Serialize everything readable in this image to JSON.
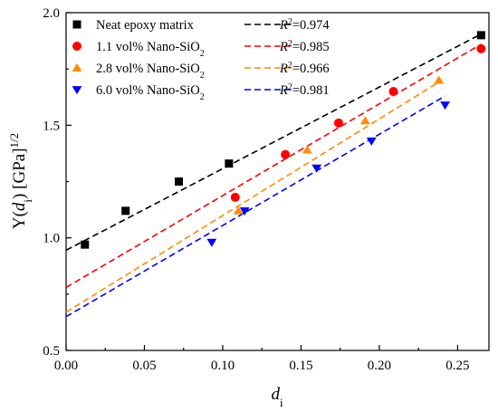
{
  "chart_data": {
    "type": "scatter",
    "xlabel": {
      "base": "d",
      "sub": "i"
    },
    "ylabel": {
      "pre": "Y(",
      "var": "d",
      "sub": "i",
      "post": ") [GPa]",
      "sup": "1/2"
    },
    "xlim": [
      0.0,
      0.27
    ],
    "ylim": [
      0.5,
      2.0
    ],
    "xticks": [
      0.0,
      0.05,
      0.1,
      0.15,
      0.2,
      0.25
    ],
    "xtick_labels": [
      "0.00",
      "0.05",
      "0.10",
      "0.15",
      "0.20",
      "0.25"
    ],
    "yticks": [
      0.5,
      1.0,
      1.5,
      2.0
    ],
    "ytick_labels": [
      "0.5",
      "1.0",
      "1.5",
      "2.0"
    ],
    "legend_placement": "top-left",
    "series": [
      {
        "name": "Neat epoxy matrix",
        "name_sub": "",
        "r2_label": "=0.974",
        "color": "#000000",
        "marker": "square",
        "x": [
          0.012,
          0.038,
          0.072,
          0.104,
          0.265
        ],
        "y": [
          0.97,
          1.12,
          1.25,
          1.33,
          1.9
        ],
        "fit": {
          "x0": 0.0,
          "y0": 0.945,
          "x1": 0.265,
          "y1": 1.905
        }
      },
      {
        "name": "1.1 vol% Nano-SiO",
        "name_sub": "2",
        "r2_label": "=0.985",
        "color": "#ff0000",
        "marker": "circle",
        "x": [
          0.108,
          0.14,
          0.174,
          0.209,
          0.265
        ],
        "y": [
          1.18,
          1.37,
          1.51,
          1.65,
          1.84
        ],
        "fit": {
          "x0": 0.0,
          "y0": 0.78,
          "x1": 0.265,
          "y1": 1.86
        }
      },
      {
        "name": "2.8 vol% Nano-SiO",
        "name_sub": "2",
        "r2_label": "=0.966",
        "color": "#ff8c00",
        "marker": "triangle-up",
        "x": [
          0.11,
          0.154,
          0.191,
          0.238
        ],
        "y": [
          1.12,
          1.39,
          1.52,
          1.7
        ],
        "fit": {
          "x0": 0.0,
          "y0": 0.67,
          "x1": 0.24,
          "y1": 1.7
        }
      },
      {
        "name": "6.0 vol% Nano-SiO",
        "name_sub": "2",
        "r2_label": "=0.981",
        "color": "#0000ff",
        "marker": "triangle-down",
        "x": [
          0.093,
          0.114,
          0.16,
          0.195,
          0.242
        ],
        "y": [
          0.98,
          1.12,
          1.31,
          1.43,
          1.59
        ],
        "fit": {
          "x0": 0.0,
          "y0": 0.65,
          "x1": 0.242,
          "y1": 1.63
        }
      }
    ]
  }
}
